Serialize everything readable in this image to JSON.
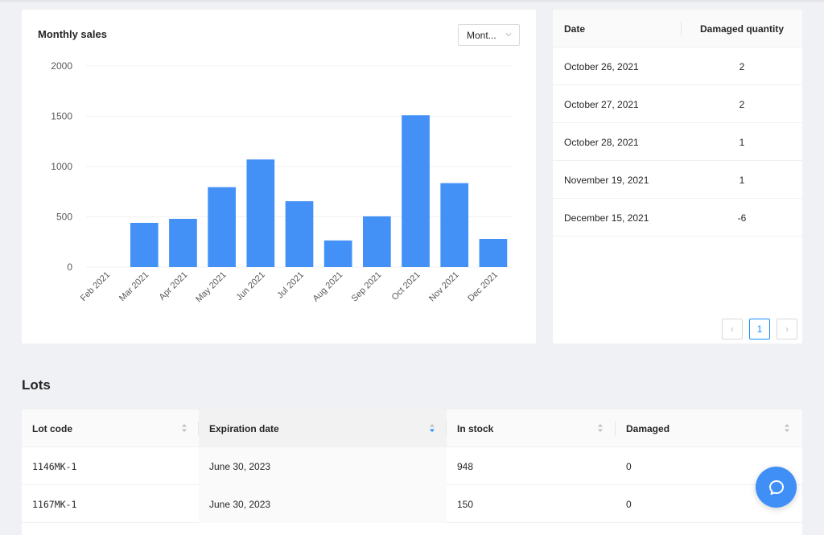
{
  "chart_card": {
    "title": "Monthly sales",
    "period_select": {
      "value": "Mont..."
    }
  },
  "chart_data": {
    "type": "bar",
    "title": "Monthly sales",
    "xlabel": "",
    "ylabel": "",
    "categories": [
      "Feb 2021",
      "Mar 2021",
      "Apr 2021",
      "May 2021",
      "Jun 2021",
      "Jul 2021",
      "Aug 2021",
      "Sep 2021",
      "Oct 2021",
      "Nov 2021",
      "Dec 2021"
    ],
    "values": [
      0,
      440,
      480,
      795,
      1070,
      655,
      265,
      505,
      1510,
      835,
      280
    ],
    "y_ticks": [
      "0",
      "500",
      "1000",
      "1500",
      "2000"
    ],
    "ylim": [
      0,
      2000
    ],
    "grid": true,
    "bar_color": "#4390f7"
  },
  "damage_table": {
    "columns": {
      "date": "Date",
      "quantity": "Damaged quantity"
    },
    "rows": [
      {
        "date": "October 26, 2021",
        "quantity": "2"
      },
      {
        "date": "October 27, 2021",
        "quantity": "2"
      },
      {
        "date": "October 28, 2021",
        "quantity": "1"
      },
      {
        "date": "November 19, 2021",
        "quantity": "1"
      },
      {
        "date": "December 15, 2021",
        "quantity": "-6"
      }
    ],
    "pagination": {
      "prev": "‹",
      "page": "1",
      "next": "›"
    }
  },
  "lots": {
    "title": "Lots",
    "columns": {
      "lot_code": "Lot code",
      "expiration_date": "Expiration date",
      "in_stock": "In stock",
      "damaged": "Damaged"
    },
    "rows": [
      {
        "lot_code": "1146MK-1",
        "expiration_date": "June 30, 2023",
        "in_stock": "948",
        "damaged": "0"
      },
      {
        "lot_code": "1167MK-1",
        "expiration_date": "June 30, 2023",
        "in_stock": "150",
        "damaged": "0"
      }
    ]
  },
  "help_button": {
    "icon": "chat-bubble-icon",
    "color": "#3f8ff7"
  },
  "colors": {
    "accent": "#1890ff",
    "background": "#f0f1f4"
  }
}
